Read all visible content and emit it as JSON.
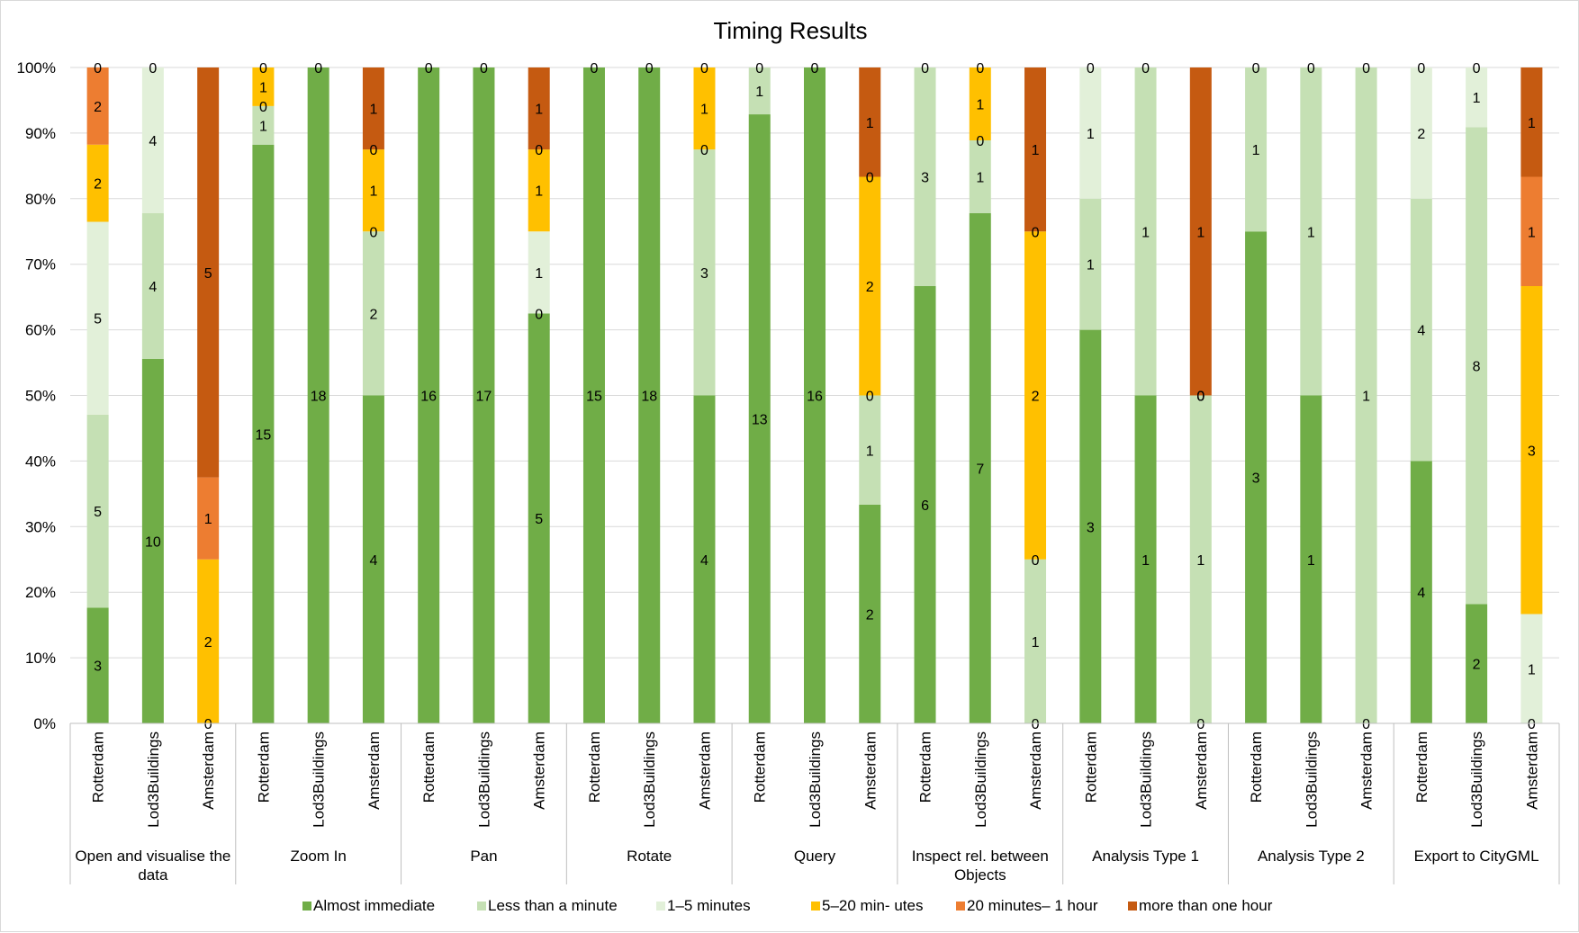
{
  "chart_data": {
    "type": "bar",
    "stacked": "percent",
    "title": "Timing Results",
    "ylim": [
      0,
      100
    ],
    "yticks": [
      "0%",
      "10%",
      "20%",
      "30%",
      "40%",
      "50%",
      "60%",
      "70%",
      "80%",
      "90%",
      "100%"
    ],
    "legend_position": "bottom",
    "series": [
      {
        "name": "Almost immediate",
        "color": "#70ad47"
      },
      {
        "name": "Less than a minute",
        "color": "#c5e0b4"
      },
      {
        "name": "1–5 minutes",
        "color": "#e2f0d9"
      },
      {
        "name": "5–20 min- utes",
        "color": "#ffc000"
      },
      {
        "name": "20 minutes– 1 hour",
        "color": "#ed7d31"
      },
      {
        "name": "more than one hour",
        "color": "#c55a11"
      }
    ],
    "groups": [
      {
        "label_lines": [
          "Open and visualise the",
          "data"
        ],
        "bars": [
          {
            "name": "Rotterdam",
            "values": [
              3,
              5,
              5,
              2,
              2,
              0
            ]
          },
          {
            "name": "Lod3Buildings",
            "values": [
              10,
              4,
              4,
              0,
              0,
              0
            ]
          },
          {
            "name": "Amsterdam",
            "values": [
              0,
              0,
              0,
              2,
              1,
              5
            ]
          }
        ]
      },
      {
        "label_lines": [
          "Zoom In"
        ],
        "bars": [
          {
            "name": "Rotterdam",
            "values": [
              15,
              1,
              0,
              1,
              0,
              0
            ]
          },
          {
            "name": "Lod3Buildings",
            "values": [
              18,
              0,
              0,
              0,
              0,
              0
            ]
          },
          {
            "name": "Amsterdam",
            "values": [
              4,
              2,
              0,
              1,
              0,
              1
            ]
          }
        ]
      },
      {
        "label_lines": [
          "Pan"
        ],
        "bars": [
          {
            "name": "Rotterdam",
            "values": [
              16,
              0,
              0,
              0,
              0,
              0
            ]
          },
          {
            "name": "Lod3Buildings",
            "values": [
              17,
              0,
              0,
              0,
              0,
              0
            ]
          },
          {
            "name": "Amsterdam",
            "values": [
              5,
              0,
              1,
              1,
              0,
              1
            ]
          }
        ]
      },
      {
        "label_lines": [
          "Rotate"
        ],
        "bars": [
          {
            "name": "Rotterdam",
            "values": [
              15,
              0,
              0,
              0,
              0,
              0
            ]
          },
          {
            "name": "Lod3Buildings",
            "values": [
              18,
              0,
              0,
              0,
              0,
              0
            ]
          },
          {
            "name": "Amsterdam",
            "values": [
              4,
              3,
              0,
              1,
              0,
              0
            ]
          }
        ]
      },
      {
        "label_lines": [
          "Query"
        ],
        "bars": [
          {
            "name": "Rotterdam",
            "values": [
              13,
              1,
              0,
              0,
              0,
              0
            ]
          },
          {
            "name": "Lod3Buildings",
            "values": [
              16,
              0,
              0,
              0,
              0,
              0
            ]
          },
          {
            "name": "Amsterdam",
            "values": [
              2,
              1,
              0,
              2,
              0,
              1
            ]
          }
        ]
      },
      {
        "label_lines": [
          "Inspect rel. between",
          "Objects"
        ],
        "bars": [
          {
            "name": "Rotterdam",
            "values": [
              6,
              3,
              0,
              0,
              0,
              0
            ]
          },
          {
            "name": "Lod3Buildings",
            "values": [
              7,
              1,
              0,
              1,
              0,
              0
            ]
          },
          {
            "name": "Amsterdam",
            "values": [
              0,
              1,
              0,
              2,
              0,
              1
            ]
          }
        ]
      },
      {
        "label_lines": [
          "Analysis Type 1"
        ],
        "bars": [
          {
            "name": "Rotterdam",
            "values": [
              3,
              1,
              1,
              0,
              0,
              0
            ]
          },
          {
            "name": "Lod3Buildings",
            "values": [
              1,
              1,
              0,
              0,
              0,
              0
            ]
          },
          {
            "name": "Amsterdam",
            "values": [
              0,
              1,
              0,
              0,
              0,
              1
            ]
          }
        ]
      },
      {
        "label_lines": [
          "Analysis Type 2"
        ],
        "bars": [
          {
            "name": "Rotterdam",
            "values": [
              3,
              1,
              0,
              0,
              0,
              0
            ]
          },
          {
            "name": "Lod3Buildings",
            "values": [
              1,
              1,
              0,
              0,
              0,
              0
            ]
          },
          {
            "name": "Amsterdam",
            "values": [
              0,
              1,
              0,
              0,
              0,
              0
            ]
          }
        ]
      },
      {
        "label_lines": [
          "Export to CityGML"
        ],
        "bars": [
          {
            "name": "Rotterdam",
            "values": [
              4,
              4,
              2,
              0,
              0,
              0
            ]
          },
          {
            "name": "Lod3Buildings",
            "values": [
              2,
              8,
              1,
              0,
              0,
              0
            ]
          },
          {
            "name": "Amsterdam",
            "values": [
              0,
              0,
              1,
              3,
              1,
              1
            ]
          }
        ]
      }
    ]
  }
}
